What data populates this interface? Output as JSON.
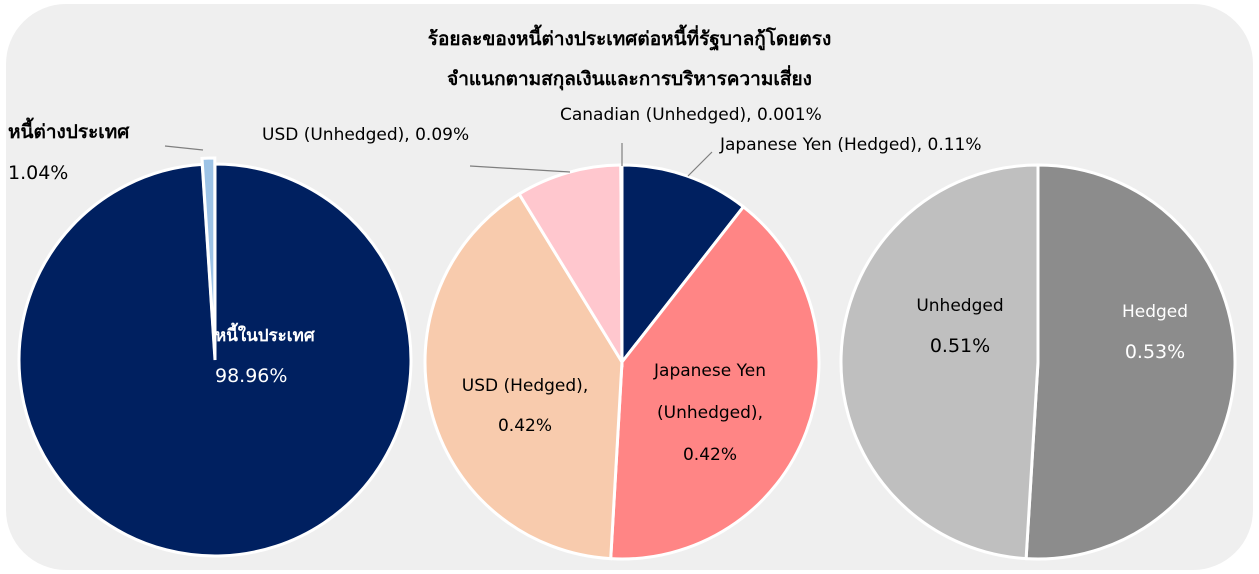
{
  "title": [
    "ร้อยละของหนี้ต่างประเทศต่อหนี้ที่รัฐบาลกู้โดยตรง",
    "จำแนกตามสกุลเงินและการบริหารความเสี่ยง"
  ],
  "chart_data": [
    {
      "type": "pie",
      "categories": [
        "หนี้ในประเทศ",
        "หนี้ต่างประเทศ"
      ],
      "values": [
        98.96,
        1.04
      ],
      "value_labels": [
        "98.96%",
        "1.04%"
      ],
      "colors": [
        "#002060",
        "#9dc3e6"
      ]
    },
    {
      "type": "pie",
      "categories": [
        "Japanese Yen (Hedged)",
        "Japanese Yen (Unhedged)",
        "USD (Hedged)",
        "USD (Unhedged)",
        "Canadian (Unhedged)"
      ],
      "values": [
        0.11,
        0.42,
        0.42,
        0.09,
        0.001
      ],
      "value_labels": [
        "0.11%",
        "0.42%",
        "0.42%",
        "0.09%",
        "0.001%"
      ],
      "colors": [
        "#002060",
        "#ff8585",
        "#f8cbad",
        "#ffc7ce",
        "#7f7f7f"
      ]
    },
    {
      "type": "pie",
      "categories": [
        "Hedged",
        "Unhedged"
      ],
      "values": [
        0.53,
        0.51
      ],
      "value_labels": [
        "0.53%",
        "0.51%"
      ],
      "colors": [
        "#8c8c8c",
        "#bfbfbf"
      ]
    }
  ]
}
